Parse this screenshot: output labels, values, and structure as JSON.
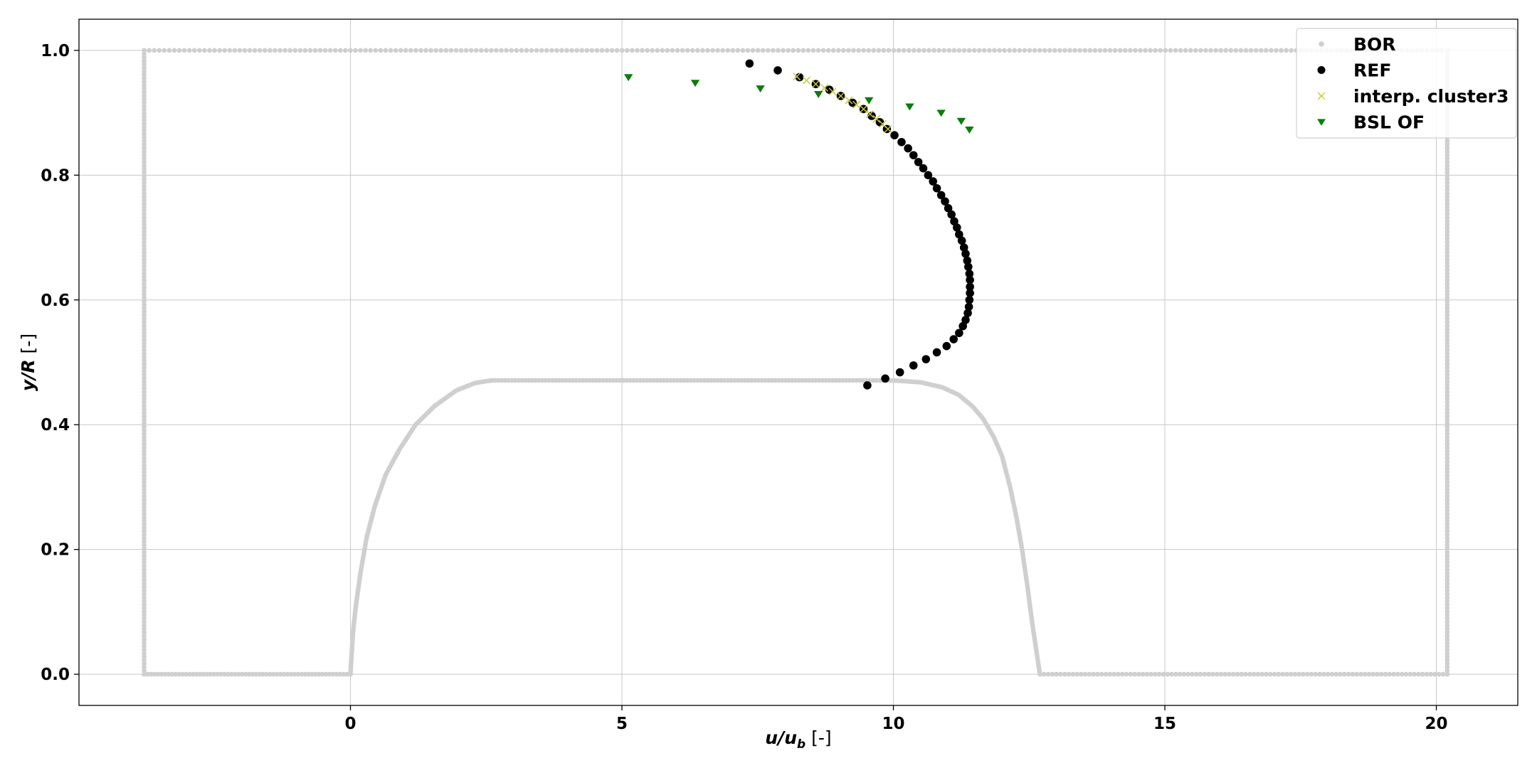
{
  "chart_data": {
    "type": "scatter",
    "title": "",
    "xlabel": {
      "main": "u/u",
      "sub": "b",
      "unit": " [-]"
    },
    "ylabel": {
      "main": "y/R",
      "unit": " [-]"
    },
    "xlim": [
      -5,
      21.5
    ],
    "ylim": [
      -0.05,
      1.05
    ],
    "xticks": [
      0,
      5,
      10,
      15,
      20
    ],
    "yticks": [
      0.0,
      0.2,
      0.4,
      0.6,
      0.8,
      1.0
    ],
    "xtick_labels": [
      "0",
      "5",
      "10",
      "15",
      "20"
    ],
    "ytick_labels": [
      "0.0",
      "0.2",
      "0.4",
      "0.6",
      "0.8",
      "1.0"
    ],
    "grid": true,
    "legend_position": "top-right",
    "series": [
      {
        "name": "BOR",
        "marker": "dot",
        "color": "#cfcfcf",
        "segments": [
          {
            "kind": "line",
            "from": [
              -3.8,
              0.0
            ],
            "to": [
              -3.8,
              1.0
            ],
            "n": 180
          },
          {
            "kind": "line",
            "from": [
              -3.8,
              1.0
            ],
            "to": [
              20.2,
              1.0
            ],
            "n": 260
          },
          {
            "kind": "line",
            "from": [
              20.2,
              1.0
            ],
            "to": [
              20.2,
              0.0
            ],
            "n": 180
          },
          {
            "kind": "line",
            "from": [
              -3.8,
              0.0
            ],
            "to": [
              0.0,
              0.0
            ],
            "n": 60
          },
          {
            "kind": "line",
            "from": [
              12.7,
              0.0
            ],
            "to": [
              20.2,
              0.0
            ],
            "n": 100
          },
          {
            "kind": "line",
            "from": [
              2.6,
              0.471
            ],
            "to": [
              10.0,
              0.471
            ],
            "n": 120
          },
          {
            "kind": "curve",
            "points": [
              [
                0.0,
                0.0
              ],
              [
                0.02,
                0.03
              ],
              [
                0.05,
                0.07
              ],
              [
                0.1,
                0.11
              ],
              [
                0.18,
                0.16
              ],
              [
                0.3,
                0.22
              ],
              [
                0.45,
                0.27
              ],
              [
                0.65,
                0.32
              ],
              [
                0.9,
                0.36
              ],
              [
                1.2,
                0.4
              ],
              [
                1.55,
                0.43
              ],
              [
                1.95,
                0.455
              ],
              [
                2.3,
                0.467
              ],
              [
                2.6,
                0.471
              ]
            ],
            "n": 140
          },
          {
            "kind": "curve",
            "points": [
              [
                10.0,
                0.471
              ],
              [
                10.5,
                0.468
              ],
              [
                10.9,
                0.46
              ],
              [
                11.2,
                0.448
              ],
              [
                11.45,
                0.43
              ],
              [
                11.65,
                0.41
              ],
              [
                11.85,
                0.38
              ],
              [
                12.0,
                0.35
              ],
              [
                12.15,
                0.3
              ],
              [
                12.27,
                0.25
              ],
              [
                12.37,
                0.2
              ],
              [
                12.47,
                0.14
              ],
              [
                12.56,
                0.08
              ],
              [
                12.63,
                0.04
              ],
              [
                12.68,
                0.01
              ],
              [
                12.7,
                0.0
              ]
            ],
            "n": 140
          }
        ]
      },
      {
        "name": "REF",
        "marker": "circle",
        "color": "#000000",
        "points": [
          [
            7.35,
            0.979
          ],
          [
            7.87,
            0.968
          ],
          [
            8.27,
            0.957
          ],
          [
            8.57,
            0.946
          ],
          [
            8.82,
            0.937
          ],
          [
            9.03,
            0.927
          ],
          [
            9.25,
            0.916
          ],
          [
            9.45,
            0.906
          ],
          [
            9.6,
            0.895
          ],
          [
            9.75,
            0.885
          ],
          [
            9.88,
            0.874
          ],
          [
            10.02,
            0.864
          ],
          [
            10.15,
            0.853
          ],
          [
            10.27,
            0.843
          ],
          [
            10.37,
            0.832
          ],
          [
            10.46,
            0.821
          ],
          [
            10.55,
            0.811
          ],
          [
            10.64,
            0.8
          ],
          [
            10.73,
            0.79
          ],
          [
            10.8,
            0.779
          ],
          [
            10.88,
            0.768
          ],
          [
            10.95,
            0.758
          ],
          [
            11.01,
            0.747
          ],
          [
            11.07,
            0.737
          ],
          [
            11.12,
            0.726
          ],
          [
            11.17,
            0.716
          ],
          [
            11.21,
            0.705
          ],
          [
            11.26,
            0.695
          ],
          [
            11.3,
            0.684
          ],
          [
            11.33,
            0.674
          ],
          [
            11.36,
            0.663
          ],
          [
            11.38,
            0.653
          ],
          [
            11.4,
            0.642
          ],
          [
            11.41,
            0.632
          ],
          [
            11.41,
            0.621
          ],
          [
            11.41,
            0.611
          ],
          [
            11.4,
            0.6
          ],
          [
            11.39,
            0.589
          ],
          [
            11.37,
            0.579
          ],
          [
            11.33,
            0.568
          ],
          [
            11.28,
            0.558
          ],
          [
            11.21,
            0.547
          ],
          [
            11.11,
            0.537
          ],
          [
            10.98,
            0.526
          ],
          [
            10.8,
            0.516
          ],
          [
            10.6,
            0.505
          ],
          [
            10.37,
            0.495
          ],
          [
            10.12,
            0.484
          ],
          [
            9.85,
            0.474
          ],
          [
            9.52,
            0.463
          ]
        ]
      },
      {
        "name": "interp. cluster3",
        "marker": "x",
        "color": "#c8c83a",
        "points": [
          [
            8.22,
            0.958
          ],
          [
            8.4,
            0.952
          ],
          [
            8.57,
            0.946
          ],
          [
            8.73,
            0.94
          ],
          [
            8.88,
            0.934
          ],
          [
            9.03,
            0.927
          ],
          [
            9.18,
            0.92
          ],
          [
            9.32,
            0.913
          ],
          [
            9.45,
            0.906
          ],
          [
            9.57,
            0.898
          ],
          [
            9.69,
            0.89
          ],
          [
            9.8,
            0.882
          ],
          [
            9.9,
            0.874
          ]
        ]
      },
      {
        "name": "BSL OF",
        "marker": "triangle-down",
        "color": "#0a7d0a",
        "points": [
          [
            5.12,
            0.957
          ],
          [
            6.35,
            0.948
          ],
          [
            7.55,
            0.939
          ],
          [
            8.62,
            0.93
          ],
          [
            9.55,
            0.92
          ],
          [
            10.3,
            0.91
          ],
          [
            10.88,
            0.9
          ],
          [
            11.25,
            0.887
          ],
          [
            11.4,
            0.873
          ]
        ]
      }
    ]
  }
}
